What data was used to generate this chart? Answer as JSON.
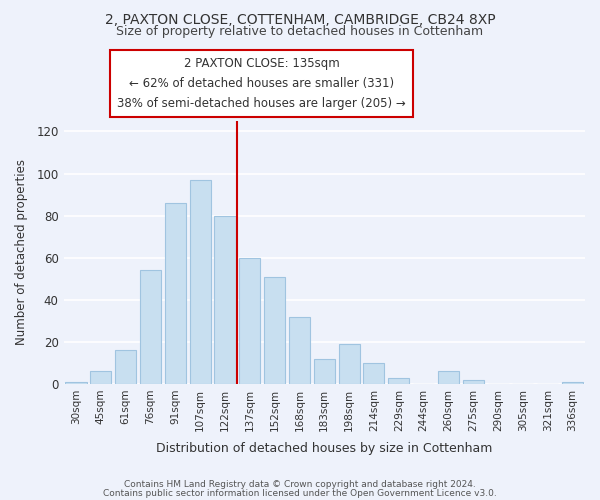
{
  "title_line1": "2, PAXTON CLOSE, COTTENHAM, CAMBRIDGE, CB24 8XP",
  "title_line2": "Size of property relative to detached houses in Cottenham",
  "xlabel": "Distribution of detached houses by size in Cottenham",
  "ylabel": "Number of detached properties",
  "bar_labels": [
    "30sqm",
    "45sqm",
    "61sqm",
    "76sqm",
    "91sqm",
    "107sqm",
    "122sqm",
    "137sqm",
    "152sqm",
    "168sqm",
    "183sqm",
    "198sqm",
    "214sqm",
    "229sqm",
    "244sqm",
    "260sqm",
    "275sqm",
    "290sqm",
    "305sqm",
    "321sqm",
    "336sqm"
  ],
  "bar_heights": [
    1,
    6,
    16,
    54,
    86,
    97,
    80,
    60,
    51,
    32,
    12,
    19,
    10,
    3,
    0,
    6,
    2,
    0,
    0,
    0,
    1
  ],
  "bar_color": "#c8dff0",
  "bar_edgecolor": "#a0c4e0",
  "vline_x_index": 6.5,
  "vline_color": "#cc0000",
  "ylim": [
    0,
    125
  ],
  "yticks": [
    0,
    20,
    40,
    60,
    80,
    100,
    120
  ],
  "annotation_title": "2 PAXTON CLOSE: 135sqm",
  "annotation_line1": "← 62% of detached houses are smaller (331)",
  "annotation_line2": "38% of semi-detached houses are larger (205) →",
  "annotation_box_facecolor": "#ffffff",
  "annotation_box_edgecolor": "#cc0000",
  "footnote1": "Contains HM Land Registry data © Crown copyright and database right 2024.",
  "footnote2": "Contains public sector information licensed under the Open Government Licence v3.0.",
  "background_color": "#eef2fb",
  "grid_color": "#ffffff"
}
